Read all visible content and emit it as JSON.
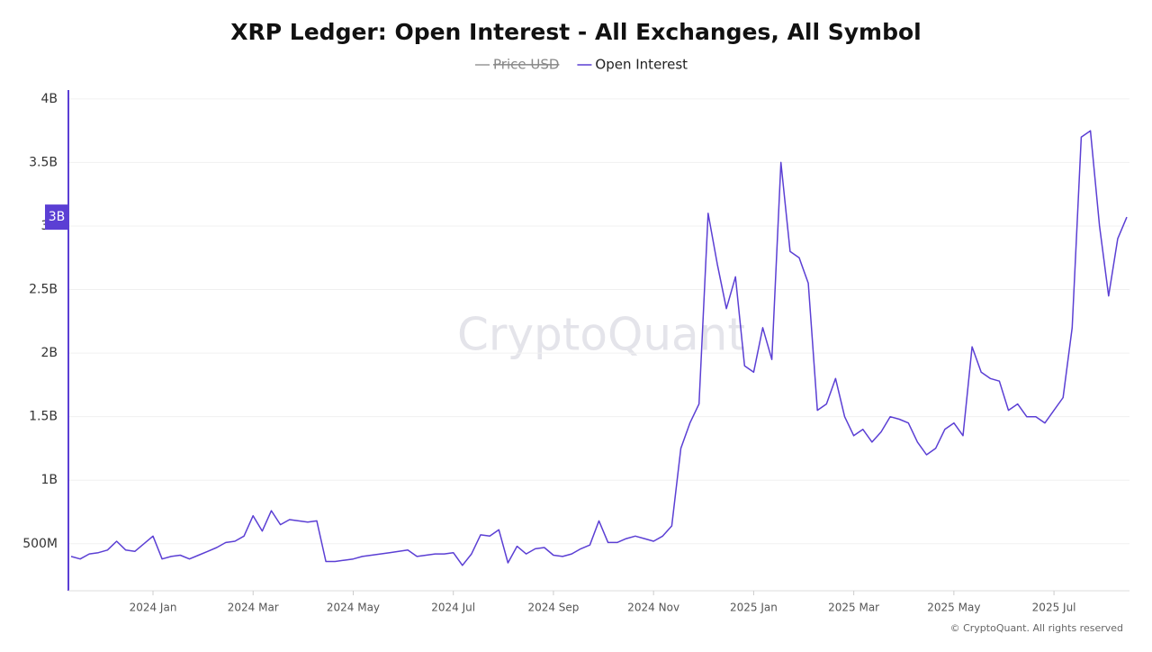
{
  "chart_data": {
    "type": "line",
    "title": "XRP Ledger: Open Interest - All Exchanges, All Symbol",
    "watermark": "CryptoQuant",
    "footer": "© CryptoQuant. All rights reserved",
    "last_value_label": "3B",
    "grid": true,
    "ylim": [
      130000000,
      4070000000
    ],
    "yticks": [
      {
        "value": 500000000,
        "label": "500M"
      },
      {
        "value": 1000000000,
        "label": "1B"
      },
      {
        "value": 1500000000,
        "label": "1.5B"
      },
      {
        "value": 2000000000,
        "label": "2B"
      },
      {
        "value": 2500000000,
        "label": "2.5B"
      },
      {
        "value": 3000000000,
        "label": "3B"
      },
      {
        "value": 3500000000,
        "label": "3.5B"
      },
      {
        "value": 4000000000,
        "label": "4B"
      }
    ],
    "categories": [
      null,
      null,
      null,
      null,
      null,
      null,
      null,
      null,
      null,
      "2024 Jan",
      null,
      null,
      null,
      null,
      null,
      null,
      null,
      null,
      null,
      null,
      "2024 Mar",
      null,
      null,
      null,
      null,
      null,
      null,
      null,
      null,
      null,
      null,
      "2024 May",
      null,
      null,
      null,
      null,
      null,
      null,
      null,
      null,
      null,
      null,
      "2024 Jul",
      null,
      null,
      null,
      null,
      null,
      null,
      null,
      null,
      null,
      null,
      "2024 Sep",
      null,
      null,
      null,
      null,
      null,
      null,
      null,
      null,
      null,
      null,
      "2024 Nov",
      null,
      null,
      null,
      null,
      null,
      null,
      null,
      null,
      null,
      null,
      "2025 Jan",
      null,
      null,
      null,
      null,
      null,
      null,
      null,
      null,
      null,
      null,
      "2025 Mar",
      null,
      null,
      null,
      null,
      null,
      null,
      null,
      null,
      null,
      null,
      "2025 May",
      null,
      null,
      null,
      null,
      null,
      null,
      null,
      null,
      null,
      null,
      "2025 Jul",
      null,
      null,
      null,
      null,
      null,
      null,
      null,
      null
    ],
    "series": [
      {
        "name": "Price USD",
        "color": "#999999",
        "visible": false
      },
      {
        "name": "Open Interest",
        "color": "#5b3fd4",
        "visible": true,
        "values": [
          400000000.0,
          380000000.0,
          420000000.0,
          430000000.0,
          450000000.0,
          520000000.0,
          450000000.0,
          440000000.0,
          500000000.0,
          560000000.0,
          380000000.0,
          400000000.0,
          410000000.0,
          380000000.0,
          410000000.0,
          440000000.0,
          470000000.0,
          510000000.0,
          520000000.0,
          560000000.0,
          720000000.0,
          600000000.0,
          760000000.0,
          650000000.0,
          690000000.0,
          680000000.0,
          670000000.0,
          680000000.0,
          360000000.0,
          360000000.0,
          370000000.0,
          380000000.0,
          400000000.0,
          410000000.0,
          420000000.0,
          430000000.0,
          440000000.0,
          450000000.0,
          400000000.0,
          410000000.0,
          420000000.0,
          420000000.0,
          430000000.0,
          330000000.0,
          420000000.0,
          570000000.0,
          560000000.0,
          610000000.0,
          350000000.0,
          480000000.0,
          420000000.0,
          460000000.0,
          470000000.0,
          410000000.0,
          400000000.0,
          420000000.0,
          460000000.0,
          490000000.0,
          680000000.0,
          510000000.0,
          510000000.0,
          540000000.0,
          560000000.0,
          540000000.0,
          520000000.0,
          560000000.0,
          640000000.0,
          1250000000.0,
          1450000000.0,
          1600000000.0,
          3100000000.0,
          2700000000.0,
          2350000000.0,
          2600000000.0,
          1900000000.0,
          1850000000.0,
          2200000000.0,
          1950000000.0,
          3500000000.0,
          2800000000.0,
          2750000000.0,
          2550000000.0,
          1550000000.0,
          1600000000.0,
          1800000000.0,
          1500000000.0,
          1350000000.0,
          1400000000.0,
          1300000000.0,
          1380000000.0,
          1500000000.0,
          1480000000.0,
          1450000000.0,
          1300000000.0,
          1200000000.0,
          1250000000.0,
          1400000000.0,
          1450000000.0,
          1350000000.0,
          2050000000.0,
          1850000000.0,
          1800000000.0,
          1780000000.0,
          1550000000.0,
          1600000000.0,
          1500000000.0,
          1500000000.0,
          1450000000.0,
          1550000000.0,
          1650000000.0,
          2200000000.0,
          3700000000.0,
          3750000000.0,
          3000000000.0,
          2450000000.0,
          2900000000.0,
          3070000000.0
        ]
      }
    ]
  }
}
